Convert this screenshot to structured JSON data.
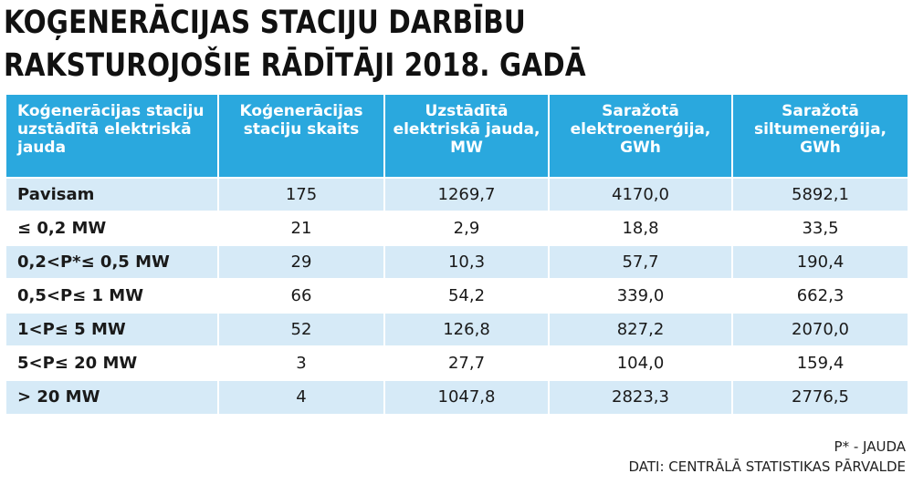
{
  "title": {
    "line1": "KOĢENERĀCIJAS STACIJU DARBĪBU",
    "line2": "RAKSTUROJOŠIE RĀDĪTĀJI 2018. GADĀ"
  },
  "colors": {
    "header": "#2aa8de",
    "stripe": "#d6eaf7"
  },
  "chart_data": {
    "type": "table",
    "title": "KOĢENERĀCIJAS STACIJU DARBĪBU RAKSTUROJOŠIE RĀDĪTĀJI 2018. GADĀ",
    "columns": [
      "Koģenerācijas staciju uzstādītā elektriskā jauda",
      "Koģenerācijas staciju skaits",
      "Uzstādītā elektriskā jauda, MW",
      "Saražotā elektroenerģija, GWh",
      "Saražotā siltumenerģija, GWh"
    ],
    "rows": [
      [
        "Pavisam",
        "175",
        "1269,7",
        "4170,0",
        "5892,1"
      ],
      [
        "≤ 0,2 MW",
        "21",
        "2,9",
        "18,8",
        "33,5"
      ],
      [
        "0,2<P*≤ 0,5 MW",
        "29",
        "10,3",
        "57,7",
        "190,4"
      ],
      [
        "0,5<P≤ 1 MW",
        "66",
        "54,2",
        "339,0",
        "662,3"
      ],
      [
        "1<P≤ 5 MW",
        "52",
        "126,8",
        "827,2",
        "2070,0"
      ],
      [
        "5<P≤ 20 MW",
        "3",
        "27,7",
        "104,0",
        "159,4"
      ],
      [
        "> 20 MW",
        "4",
        "1047,8",
        "2823,3",
        "2776,5"
      ]
    ]
  },
  "notes": {
    "footnote": "P* - JAUDA",
    "source": "DATI: CENTRĀLĀ STATISTIKAS PĀRVALDE"
  }
}
